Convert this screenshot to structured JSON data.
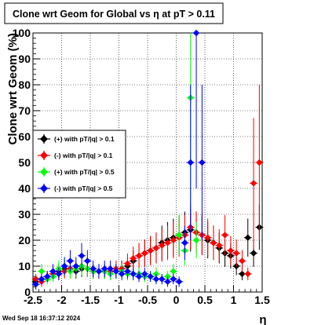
{
  "chart_data": {
    "type": "scatter",
    "title": "Clone wrt Geom for Global vs   η at pT > 0.11",
    "xlabel": "η",
    "ylabel": "Clone wrt Geom (%)",
    "xlim": [
      -2.5,
      1.5
    ],
    "ylim": [
      0,
      100
    ],
    "x_ticks": [
      "-2.5",
      "-2",
      "-1.5",
      "-1",
      "-0.5",
      "0",
      "0.5",
      "1",
      "1.5"
    ],
    "y_ticks": [
      "0",
      "10",
      "20",
      "30",
      "40",
      "50",
      "60",
      "70",
      "80",
      "90",
      "100"
    ],
    "grid": true,
    "legend_position": "left-middle",
    "footer": "Wed Sep 18 16:37:12 2024",
    "series": [
      {
        "name": "(+) with pT/|q| > 0.1",
        "color": "#000000",
        "points": [
          [
            -2.45,
            4
          ],
          [
            -2.35,
            5
          ],
          [
            -2.25,
            6
          ],
          [
            -2.15,
            7
          ],
          [
            -2.05,
            8
          ],
          [
            -1.95,
            9
          ],
          [
            -1.85,
            9
          ],
          [
            -1.75,
            8
          ],
          [
            -1.65,
            9
          ],
          [
            -1.55,
            9
          ],
          [
            -1.45,
            8
          ],
          [
            -1.35,
            8
          ],
          [
            -1.25,
            8
          ],
          [
            -1.15,
            8
          ],
          [
            -1.05,
            8
          ],
          [
            -0.95,
            9
          ],
          [
            -0.85,
            10
          ],
          [
            -0.75,
            12
          ],
          [
            -0.65,
            14
          ],
          [
            -0.55,
            15
          ],
          [
            -0.45,
            16
          ],
          [
            -0.35,
            17
          ],
          [
            -0.25,
            19
          ],
          [
            -0.15,
            20
          ],
          [
            -0.05,
            21
          ],
          [
            0.05,
            22
          ],
          [
            0.15,
            23
          ],
          [
            0.25,
            24
          ],
          [
            0.35,
            23
          ],
          [
            0.45,
            22
          ],
          [
            0.55,
            20
          ],
          [
            0.65,
            19
          ],
          [
            0.75,
            17
          ],
          [
            0.85,
            15
          ],
          [
            0.95,
            14
          ],
          [
            1.05,
            10
          ],
          [
            1.15,
            7
          ],
          [
            1.25,
            21
          ],
          [
            1.35,
            15
          ],
          [
            1.45,
            25
          ]
        ]
      },
      {
        "name": "(-) with pT/|q| > 0.1",
        "color": "#ff0000",
        "points": [
          [
            -2.45,
            5
          ],
          [
            -2.35,
            4
          ],
          [
            -2.25,
            6
          ],
          [
            -2.15,
            7
          ],
          [
            -2.05,
            7
          ],
          [
            -1.95,
            8
          ],
          [
            -1.85,
            9
          ],
          [
            -1.75,
            9
          ],
          [
            -1.65,
            10
          ],
          [
            -1.55,
            9
          ],
          [
            -1.45,
            8
          ],
          [
            -1.35,
            8
          ],
          [
            -1.25,
            8
          ],
          [
            -1.15,
            8
          ],
          [
            -1.05,
            9
          ],
          [
            -0.95,
            9
          ],
          [
            -0.85,
            11
          ],
          [
            -0.75,
            13
          ],
          [
            -0.65,
            14
          ],
          [
            -0.55,
            15
          ],
          [
            -0.45,
            16
          ],
          [
            -0.35,
            17
          ],
          [
            -0.25,
            18
          ],
          [
            -0.15,
            19
          ],
          [
            -0.05,
            20
          ],
          [
            0.05,
            21
          ],
          [
            0.15,
            22
          ],
          [
            0.25,
            25
          ],
          [
            0.35,
            23
          ],
          [
            0.45,
            22
          ],
          [
            0.55,
            21
          ],
          [
            0.65,
            19
          ],
          [
            0.75,
            18
          ],
          [
            0.85,
            22
          ],
          [
            0.95,
            16
          ],
          [
            1.05,
            15
          ],
          [
            1.15,
            12
          ],
          [
            1.25,
            7
          ],
          [
            1.35,
            42
          ],
          [
            1.45,
            50
          ]
        ]
      },
      {
        "name": "(+) with pT/|q| > 0.5",
        "color": "#00ff00",
        "points": [
          [
            -2.45,
            3
          ],
          [
            -2.35,
            8
          ],
          [
            -2.25,
            5
          ],
          [
            -2.15,
            6
          ],
          [
            -2.05,
            9
          ],
          [
            -1.95,
            10
          ],
          [
            -1.85,
            8
          ],
          [
            -1.75,
            9
          ],
          [
            -1.65,
            10
          ],
          [
            -1.55,
            9
          ],
          [
            -1.45,
            8
          ],
          [
            -1.35,
            8
          ],
          [
            -1.25,
            8
          ],
          [
            -1.15,
            7
          ],
          [
            -1.05,
            8
          ],
          [
            -0.95,
            8
          ],
          [
            -0.85,
            7
          ],
          [
            -0.75,
            7
          ],
          [
            -0.65,
            7
          ],
          [
            -0.55,
            6
          ],
          [
            -0.45,
            6
          ],
          [
            -0.35,
            7
          ],
          [
            -0.25,
            5
          ],
          [
            -0.15,
            6
          ],
          [
            -0.05,
            8
          ],
          [
            0.05,
            22
          ],
          [
            0.15,
            16
          ],
          [
            0.25,
            75
          ],
          [
            0.35,
            20
          ]
        ]
      },
      {
        "name": "(-) with pT/|q| > 0.5",
        "color": "#0000ff",
        "points": [
          [
            -2.45,
            3
          ],
          [
            -2.35,
            5
          ],
          [
            -2.25,
            6
          ],
          [
            -2.15,
            8
          ],
          [
            -2.05,
            7
          ],
          [
            -1.95,
            10
          ],
          [
            -1.85,
            12
          ],
          [
            -1.75,
            10
          ],
          [
            -1.65,
            14
          ],
          [
            -1.55,
            12
          ],
          [
            -1.45,
            9
          ],
          [
            -1.35,
            8
          ],
          [
            -1.25,
            9
          ],
          [
            -1.15,
            9
          ],
          [
            -1.05,
            8
          ],
          [
            -0.95,
            7
          ],
          [
            -0.85,
            8
          ],
          [
            -0.75,
            7
          ],
          [
            -0.65,
            6
          ],
          [
            -0.55,
            7
          ],
          [
            -0.45,
            6
          ],
          [
            -0.35,
            5
          ],
          [
            -0.25,
            5
          ],
          [
            -0.15,
            4
          ],
          [
            -0.05,
            5
          ],
          [
            0.05,
            4
          ],
          [
            0.15,
            19
          ],
          [
            0.25,
            50
          ],
          [
            0.35,
            100
          ],
          [
            0.45,
            50
          ]
        ]
      }
    ]
  }
}
